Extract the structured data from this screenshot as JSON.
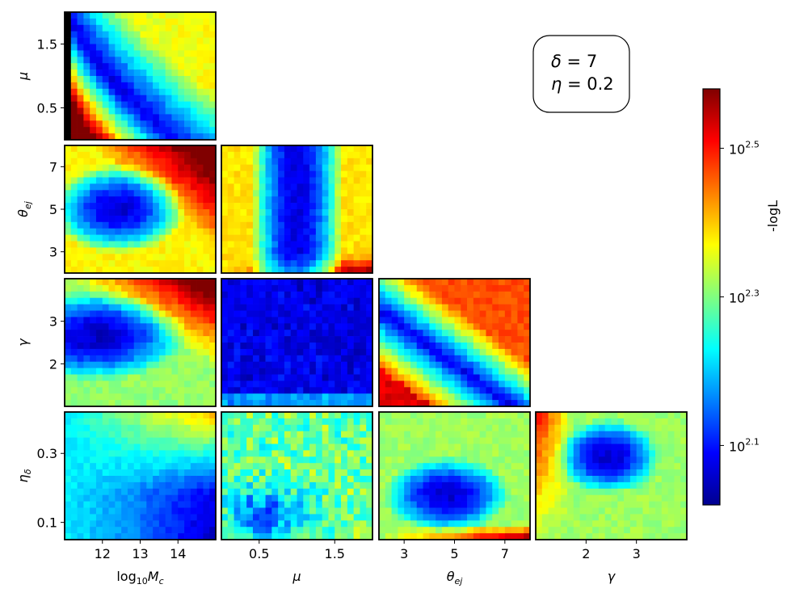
{
  "chart_data": {
    "type": "heatmap",
    "layout": "corner-plot",
    "colormap": "jet",
    "grid": false,
    "parameters": [
      {
        "key": "logMc",
        "label": "log10Mc",
        "label_main": "log",
        "label_sub": "10",
        "label_var": "M",
        "label_var_sub": "c",
        "range": [
          11.0,
          15.0
        ],
        "ticks": [
          12,
          13,
          14
        ],
        "tick_labels": [
          "12",
          "13",
          "14"
        ]
      },
      {
        "key": "mu",
        "label": "μ",
        "label_main": "μ",
        "label_sub": "",
        "label_var": "",
        "label_var_sub": "",
        "range": [
          0.0,
          2.0
        ],
        "ticks": [
          0.5,
          1.5
        ],
        "tick_labels": [
          "0.5",
          "1.5"
        ]
      },
      {
        "key": "theta_ej",
        "label": "θej",
        "label_main": "θ",
        "label_sub": "ej",
        "label_var": "",
        "label_var_sub": "",
        "range": [
          2.0,
          8.0
        ],
        "ticks": [
          3,
          5,
          7
        ],
        "tick_labels": [
          "3",
          "5",
          "7"
        ]
      },
      {
        "key": "gamma",
        "label": "γ",
        "label_main": "γ",
        "label_sub": "",
        "label_var": "",
        "label_var_sub": "",
        "range": [
          1.0,
          4.0
        ],
        "ticks": [
          2,
          3
        ],
        "tick_labels": [
          "2",
          "3"
        ]
      },
      {
        "key": "eta_delta",
        "label": "ηδ",
        "label_main": "η",
        "label_sub": "δ",
        "label_var": "",
        "label_var_sub": "",
        "range": [
          0.05,
          0.42
        ],
        "ticks": [
          0.1,
          0.3
        ],
        "tick_labels": [
          "0.1",
          "0.3"
        ]
      }
    ],
    "panels": [
      {
        "row": 0,
        "col": 0,
        "x": "logMc",
        "y": "mu",
        "grid_size": [
          24,
          20
        ],
        "value_range_log10": [
          2.02,
          2.58
        ],
        "pattern": "low-value valley curving from upper left to lower centre; high values (red) at bottom right"
      },
      {
        "row": 1,
        "col": 0,
        "x": "logMc",
        "y": "theta_ej",
        "grid_size": [
          24,
          20
        ],
        "value_range_log10": [
          2.02,
          2.58
        ],
        "pattern": "minimum near logMc≈12.5, θej≈5; high values at top right"
      },
      {
        "row": 1,
        "col": 1,
        "x": "mu",
        "y": "theta_ej",
        "grid_size": [
          24,
          20
        ],
        "value_range_log10": [
          2.02,
          2.58
        ],
        "pattern": "low-value band around μ≈1.1; high values along bottom edge at large μ"
      },
      {
        "row": 2,
        "col": 0,
        "x": "logMc",
        "y": "gamma",
        "grid_size": [
          24,
          20
        ],
        "value_range_log10": [
          2.02,
          2.58
        ],
        "pattern": "low values at γ≈2.5 and small logMc; high values at top right"
      },
      {
        "row": 2,
        "col": 1,
        "x": "mu",
        "y": "gamma",
        "grid_size": [
          24,
          20
        ],
        "value_range_log10": [
          2.02,
          2.58
        ],
        "pattern": "nearly flat, low values everywhere with scattered noisy pixels"
      },
      {
        "row": 2,
        "col": 2,
        "x": "theta_ej",
        "y": "gamma",
        "grid_size": [
          24,
          20
        ],
        "value_range_log10": [
          2.02,
          2.58
        ],
        "pattern": "diagonal low-value band; high values at top right and bottom left"
      },
      {
        "row": 3,
        "col": 0,
        "x": "logMc",
        "y": "eta_delta",
        "grid_size": [
          24,
          20
        ],
        "value_range_log10": [
          2.02,
          2.58
        ],
        "pattern": "low values at bottom right, high values at top right"
      },
      {
        "row": 3,
        "col": 1,
        "x": "mu",
        "y": "eta_delta",
        "grid_size": [
          24,
          20
        ],
        "value_range_log10": [
          2.02,
          2.58
        ],
        "pattern": "noisy mid values with a low patch near μ≈0.9, ηδ≈0.15"
      },
      {
        "row": 3,
        "col": 2,
        "x": "theta_ej",
        "y": "eta_delta",
        "grid_size": [
          24,
          20
        ],
        "value_range_log10": [
          2.02,
          2.58
        ],
        "pattern": "low-value basin near θej≈4.5, ηδ≈0.18; high values along bottom edge at large θej"
      },
      {
        "row": 3,
        "col": 3,
        "x": "gamma",
        "y": "eta_delta",
        "grid_size": [
          24,
          20
        ],
        "value_range_log10": [
          2.02,
          2.58
        ],
        "pattern": "low values near γ≈2.4, ηδ≈0.3; high values at top left"
      }
    ],
    "colorbar": {
      "label": "-logL",
      "scale": "log",
      "range_log10": [
        2.02,
        2.58
      ],
      "ticks": [
        {
          "log10": 2.1,
          "base": "10",
          "exp": "2.1"
        },
        {
          "log10": 2.3,
          "base": "10",
          "exp": "2.3"
        },
        {
          "log10": 2.5,
          "base": "10",
          "exp": "2.5"
        }
      ]
    },
    "annotation": {
      "line1_sym": "δ",
      "line1_eq": " = ",
      "line1_val": "7",
      "line2_sym": "η",
      "line2_eq": " = ",
      "line2_val": "0.2"
    }
  }
}
